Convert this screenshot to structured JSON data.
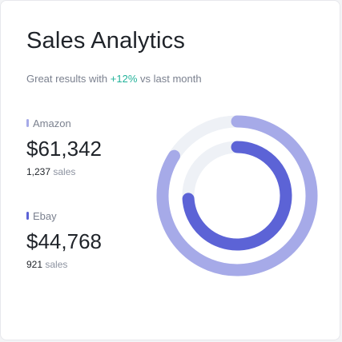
{
  "card": {
    "title": "Sales Analytics",
    "subtitle": {
      "prefix": "Great results with ",
      "percent": "+12%",
      "suffix": " vs last month"
    }
  },
  "stats": [
    {
      "label": "Amazon",
      "value": "$61,342",
      "count": "1,237",
      "count_unit": " sales",
      "color": "#a6aae8"
    },
    {
      "label": "Ebay",
      "value": "$44,768",
      "count": "921",
      "count_unit": " sales",
      "color": "#5c63d6"
    }
  ],
  "colors": {
    "accent_positive": "#23b29a",
    "track": "#eef1f6",
    "amazon": "#a6aae8",
    "ebay": "#5c63d6"
  },
  "chart_data": {
    "type": "radial-bar",
    "series": [
      {
        "name": "Amazon",
        "value": 0.84,
        "color": "#a6aae8"
      },
      {
        "name": "Ebay",
        "value": 0.74,
        "color": "#5c63d6"
      }
    ]
  }
}
